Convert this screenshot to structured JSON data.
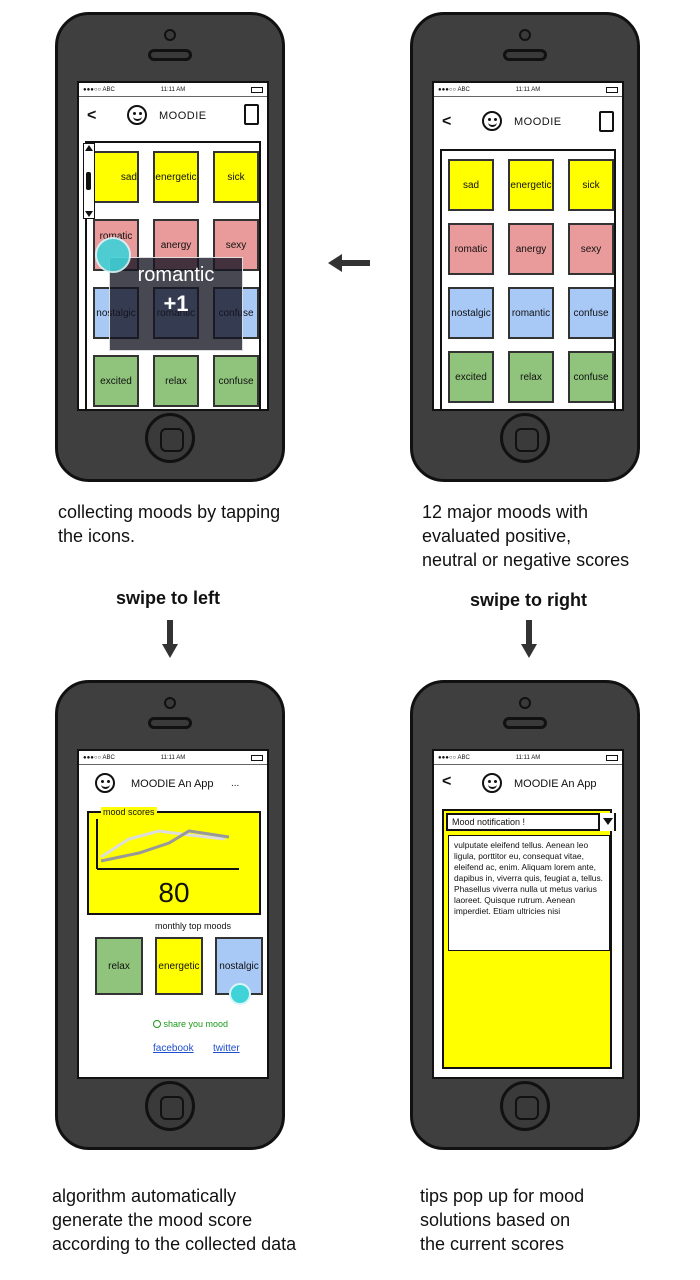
{
  "status": {
    "left": "●●●○○ ABC",
    "time": "11:11 AM"
  },
  "phone1": {
    "app_title": "MOODIE",
    "tiles": [
      {
        "label": "sad",
        "color": "yellow"
      },
      {
        "label": "energetic",
        "color": "yellow"
      },
      {
        "label": "sick",
        "color": "yellow"
      },
      {
        "label": "romatic",
        "color": "pink"
      },
      {
        "label": "anergy",
        "color": "pink"
      },
      {
        "label": "sexy",
        "color": "pink"
      },
      {
        "label": "nostalgic",
        "color": "blue"
      },
      {
        "label": "romantic",
        "color": "blue"
      },
      {
        "label": "confuse",
        "color": "blue"
      },
      {
        "label": "excited",
        "color": "green"
      },
      {
        "label": "relax",
        "color": "green"
      },
      {
        "label": "confuse",
        "color": "green"
      }
    ],
    "popup_label": "romantic",
    "popup_value": "+1"
  },
  "phone2": {
    "app_title": "MOODIE",
    "tiles": [
      {
        "label": "sad",
        "color": "yellow"
      },
      {
        "label": "energetic",
        "color": "yellow"
      },
      {
        "label": "sick",
        "color": "yellow"
      },
      {
        "label": "romatic",
        "color": "pink"
      },
      {
        "label": "anergy",
        "color": "pink"
      },
      {
        "label": "sexy",
        "color": "pink"
      },
      {
        "label": "nostalgic",
        "color": "blue"
      },
      {
        "label": "romantic",
        "color": "blue"
      },
      {
        "label": "confuse",
        "color": "blue"
      },
      {
        "label": "excited",
        "color": "green"
      },
      {
        "label": "relax",
        "color": "green"
      },
      {
        "label": "confuse",
        "color": "green"
      }
    ]
  },
  "phone3": {
    "app_title": "MOODIE An App",
    "more": "...",
    "chart_label": "mood scores",
    "score": "80",
    "monthly_label": "monthly top moods",
    "top_moods": [
      {
        "label": "relax",
        "color": "green"
      },
      {
        "label": "energetic",
        "color": "yellow"
      },
      {
        "label": "nostalgic",
        "color": "blue"
      }
    ],
    "share": "share you mood",
    "facebook": "facebook",
    "twitter": "twitter"
  },
  "phone4": {
    "app_title": "MOODIE An App",
    "dropdown": "Mood notification  !",
    "notification_text": "vulputate eleifend tellus. Aenean leo ligula, porttitor eu, consequat vitae, eleifend ac, enim. Aliquam lorem ante, dapibus in, viverra quis, feugiat a, tellus. Phasellus viverra nulla ut metus varius laoreet. Quisque rutrum. Aenean imperdiet. Etiam ultricies nisi"
  },
  "captions": {
    "c1": [
      "collecting moods by tapping",
      "the icons."
    ],
    "c2": [
      "12 major moods with",
      "evaluated positive,",
      "neutral or negative scores"
    ],
    "c3": [
      "algorithm automatically",
      "generate the mood score",
      "according to the collected data"
    ],
    "c4": [
      "tips pop up for mood",
      "solutions based on",
      "the current scores"
    ]
  },
  "swipe_left": "swipe to left",
  "swipe_right": "swipe to right",
  "colors": {
    "yellow": "#ffff00",
    "pink": "#e99a9a",
    "blue": "#a8c8f6",
    "green": "#90c47c",
    "teal": "#3fd2d8"
  }
}
